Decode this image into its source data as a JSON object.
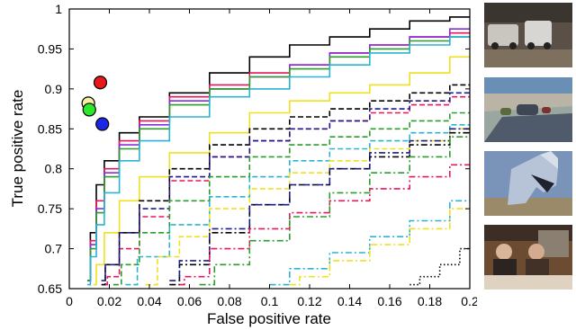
{
  "chart_data": {
    "type": "line",
    "title": "",
    "xlabel": "False positive rate",
    "ylabel": "True positive rate",
    "xlim": [
      0,
      0.2
    ],
    "ylim": [
      0.65,
      1.0
    ],
    "xticks": [
      0,
      0.02,
      0.04,
      0.06,
      0.08,
      0.1,
      0.12,
      0.14,
      0.16,
      0.18,
      0.2
    ],
    "xtick_labels": [
      "0",
      "0.02",
      "0.04",
      "0.06",
      "0.08",
      "0.1",
      "0.12",
      "0.14",
      "0.16",
      "0.18",
      "0.2"
    ],
    "yticks": [
      0.65,
      0.7,
      0.75,
      0.8,
      0.85,
      0.9,
      0.95,
      1.0
    ],
    "ytick_labels": [
      "0.65",
      "0.7",
      "0.75",
      "0.8",
      "0.85",
      "0.9",
      "0.95",
      "1"
    ],
    "grid": false,
    "legend": "none",
    "series": [
      {
        "color": "#000000",
        "style": "solid",
        "x": [
          0.009,
          0.012,
          0.015,
          0.02,
          0.03,
          0.04,
          0.06,
          0.08,
          0.1,
          0.12,
          0.14,
          0.16,
          0.18,
          0.2
        ],
        "y": [
          0.66,
          0.72,
          0.78,
          0.81,
          0.845,
          0.865,
          0.895,
          0.92,
          0.94,
          0.955,
          0.965,
          0.975,
          0.985,
          0.99
        ]
      },
      {
        "color": "#e8175d",
        "style": "solid",
        "x": [
          0.009,
          0.012,
          0.015,
          0.02,
          0.03,
          0.04,
          0.06,
          0.08,
          0.1,
          0.12,
          0.14,
          0.16,
          0.18,
          0.2
        ],
        "y": [
          0.66,
          0.71,
          0.76,
          0.8,
          0.835,
          0.86,
          0.89,
          0.905,
          0.92,
          0.93,
          0.945,
          0.955,
          0.965,
          0.97
        ]
      },
      {
        "color": "#8b2be2",
        "style": "solid",
        "x": [
          0.009,
          0.012,
          0.015,
          0.02,
          0.03,
          0.04,
          0.06,
          0.08,
          0.1,
          0.12,
          0.14,
          0.16,
          0.18,
          0.2
        ],
        "y": [
          0.66,
          0.705,
          0.75,
          0.795,
          0.83,
          0.855,
          0.885,
          0.9,
          0.915,
          0.93,
          0.945,
          0.955,
          0.965,
          0.975
        ]
      },
      {
        "color": "#2a9d2a",
        "style": "solid",
        "x": [
          0.009,
          0.012,
          0.015,
          0.02,
          0.03,
          0.04,
          0.06,
          0.08,
          0.1,
          0.12,
          0.14,
          0.16,
          0.18,
          0.2
        ],
        "y": [
          0.66,
          0.7,
          0.745,
          0.79,
          0.825,
          0.85,
          0.88,
          0.9,
          0.915,
          0.925,
          0.94,
          0.95,
          0.96,
          0.965
        ]
      },
      {
        "color": "#2bb3d4",
        "style": "solid",
        "x": [
          0.009,
          0.012,
          0.015,
          0.02,
          0.03,
          0.04,
          0.06,
          0.08,
          0.1,
          0.12,
          0.14,
          0.16,
          0.18,
          0.2
        ],
        "y": [
          0.655,
          0.69,
          0.73,
          0.77,
          0.81,
          0.835,
          0.865,
          0.89,
          0.9,
          0.915,
          0.93,
          0.945,
          0.955,
          0.965
        ]
      },
      {
        "color": "#f0e020",
        "style": "solid",
        "x": [
          0.012,
          0.015,
          0.02,
          0.03,
          0.04,
          0.06,
          0.08,
          0.1,
          0.12,
          0.14,
          0.16,
          0.18,
          0.2
        ],
        "y": [
          0.655,
          0.68,
          0.72,
          0.76,
          0.79,
          0.82,
          0.845,
          0.87,
          0.885,
          0.895,
          0.905,
          0.92,
          0.94
        ]
      },
      {
        "color": "#000000",
        "style": "dashed",
        "x": [
          0.016,
          0.02,
          0.03,
          0.04,
          0.06,
          0.08,
          0.1,
          0.12,
          0.14,
          0.16,
          0.18,
          0.2
        ],
        "y": [
          0.655,
          0.68,
          0.72,
          0.76,
          0.8,
          0.83,
          0.85,
          0.865,
          0.875,
          0.885,
          0.895,
          0.905
        ]
      },
      {
        "color": "#e8175d",
        "style": "dashed",
        "x": [
          0.018,
          0.02,
          0.03,
          0.04,
          0.06,
          0.08,
          0.1,
          0.12,
          0.14,
          0.16,
          0.18,
          0.2
        ],
        "y": [
          0.655,
          0.665,
          0.7,
          0.74,
          0.785,
          0.815,
          0.835,
          0.85,
          0.86,
          0.87,
          0.88,
          0.89
        ]
      },
      {
        "color": "#1c1c8c",
        "style": "dashed",
        "x": [
          0.016,
          0.02,
          0.03,
          0.04,
          0.06,
          0.08,
          0.1,
          0.12,
          0.14,
          0.16,
          0.18,
          0.2
        ],
        "y": [
          0.66,
          0.68,
          0.72,
          0.75,
          0.79,
          0.815,
          0.835,
          0.85,
          0.86,
          0.875,
          0.885,
          0.895
        ]
      },
      {
        "color": "#2a9d2a",
        "style": "dashed",
        "x": [
          0.022,
          0.03,
          0.04,
          0.06,
          0.08,
          0.1,
          0.12,
          0.14,
          0.16,
          0.18,
          0.2
        ],
        "y": [
          0.655,
          0.68,
          0.72,
          0.76,
          0.79,
          0.815,
          0.83,
          0.84,
          0.85,
          0.86,
          0.87
        ]
      },
      {
        "color": "#2bb3d4",
        "style": "dashed",
        "x": [
          0.028,
          0.04,
          0.06,
          0.08,
          0.1,
          0.12,
          0.14,
          0.16,
          0.18,
          0.2
        ],
        "y": [
          0.655,
          0.69,
          0.73,
          0.765,
          0.79,
          0.81,
          0.825,
          0.835,
          0.845,
          0.855
        ]
      },
      {
        "color": "#f0e020",
        "style": "dashed",
        "x": [
          0.038,
          0.05,
          0.06,
          0.08,
          0.1,
          0.12,
          0.14,
          0.16,
          0.18,
          0.2
        ],
        "y": [
          0.655,
          0.69,
          0.715,
          0.75,
          0.775,
          0.795,
          0.81,
          0.825,
          0.835,
          0.85
        ]
      },
      {
        "color": "#000000",
        "style": "dashdot",
        "x": [
          0.05,
          0.06,
          0.08,
          0.1,
          0.12,
          0.14,
          0.16,
          0.18,
          0.2
        ],
        "y": [
          0.655,
          0.68,
          0.72,
          0.755,
          0.78,
          0.8,
          0.815,
          0.83,
          0.845
        ]
      },
      {
        "color": "#1c1c8c",
        "style": "dashdot",
        "x": [
          0.05,
          0.06,
          0.08,
          0.1,
          0.12,
          0.14,
          0.16,
          0.18,
          0.2
        ],
        "y": [
          0.66,
          0.685,
          0.725,
          0.755,
          0.78,
          0.8,
          0.82,
          0.835,
          0.85
        ]
      },
      {
        "color": "#e8175d",
        "style": "dashdot",
        "x": [
          0.055,
          0.06,
          0.08,
          0.1,
          0.12,
          0.14,
          0.16,
          0.18,
          0.2
        ],
        "y": [
          0.655,
          0.665,
          0.7,
          0.725,
          0.745,
          0.76,
          0.775,
          0.79,
          0.805
        ]
      },
      {
        "color": "#2a9d2a",
        "style": "dashdot",
        "x": [
          0.065,
          0.08,
          0.1,
          0.12,
          0.14,
          0.16,
          0.18,
          0.2
        ],
        "y": [
          0.655,
          0.68,
          0.71,
          0.74,
          0.77,
          0.795,
          0.815,
          0.84
        ]
      },
      {
        "color": "#2bb3d4",
        "style": "dashdot",
        "x": [
          0.1,
          0.12,
          0.14,
          0.16,
          0.18,
          0.2
        ],
        "y": [
          0.655,
          0.675,
          0.695,
          0.715,
          0.735,
          0.76
        ]
      },
      {
        "color": "#f0e020",
        "style": "dashdot",
        "x": [
          0.11,
          0.12,
          0.14,
          0.16,
          0.18,
          0.2
        ],
        "y": [
          0.655,
          0.665,
          0.685,
          0.705,
          0.725,
          0.75
        ]
      },
      {
        "color": "#000000",
        "style": "dotted",
        "x": [
          0.17,
          0.18,
          0.19,
          0.2
        ],
        "y": [
          0.655,
          0.665,
          0.68,
          0.7
        ]
      }
    ],
    "points": [
      {
        "x": 0.0155,
        "y": 0.908,
        "fill": "#e8171b"
      },
      {
        "x": 0.0095,
        "y": 0.882,
        "fill": "#f7f0a2"
      },
      {
        "x": 0.01,
        "y": 0.874,
        "fill": "#2be82b"
      },
      {
        "x": 0.0165,
        "y": 0.856,
        "fill": "#1a28e6"
      }
    ]
  },
  "thumbnails": [
    {
      "name": "street-vans",
      "colors": [
        "#5a5048",
        "#7d705e",
        "#c9c6c0"
      ]
    },
    {
      "name": "road-cars",
      "colors": [
        "#6a8fb5",
        "#9aa7a0",
        "#3f4654"
      ]
    },
    {
      "name": "horse",
      "colors": [
        "#7a94b9",
        "#b7c3d6",
        "#1e232d"
      ]
    },
    {
      "name": "people-indoor",
      "colors": [
        "#6b4c33",
        "#e0d2c0",
        "#2b2420"
      ]
    }
  ]
}
